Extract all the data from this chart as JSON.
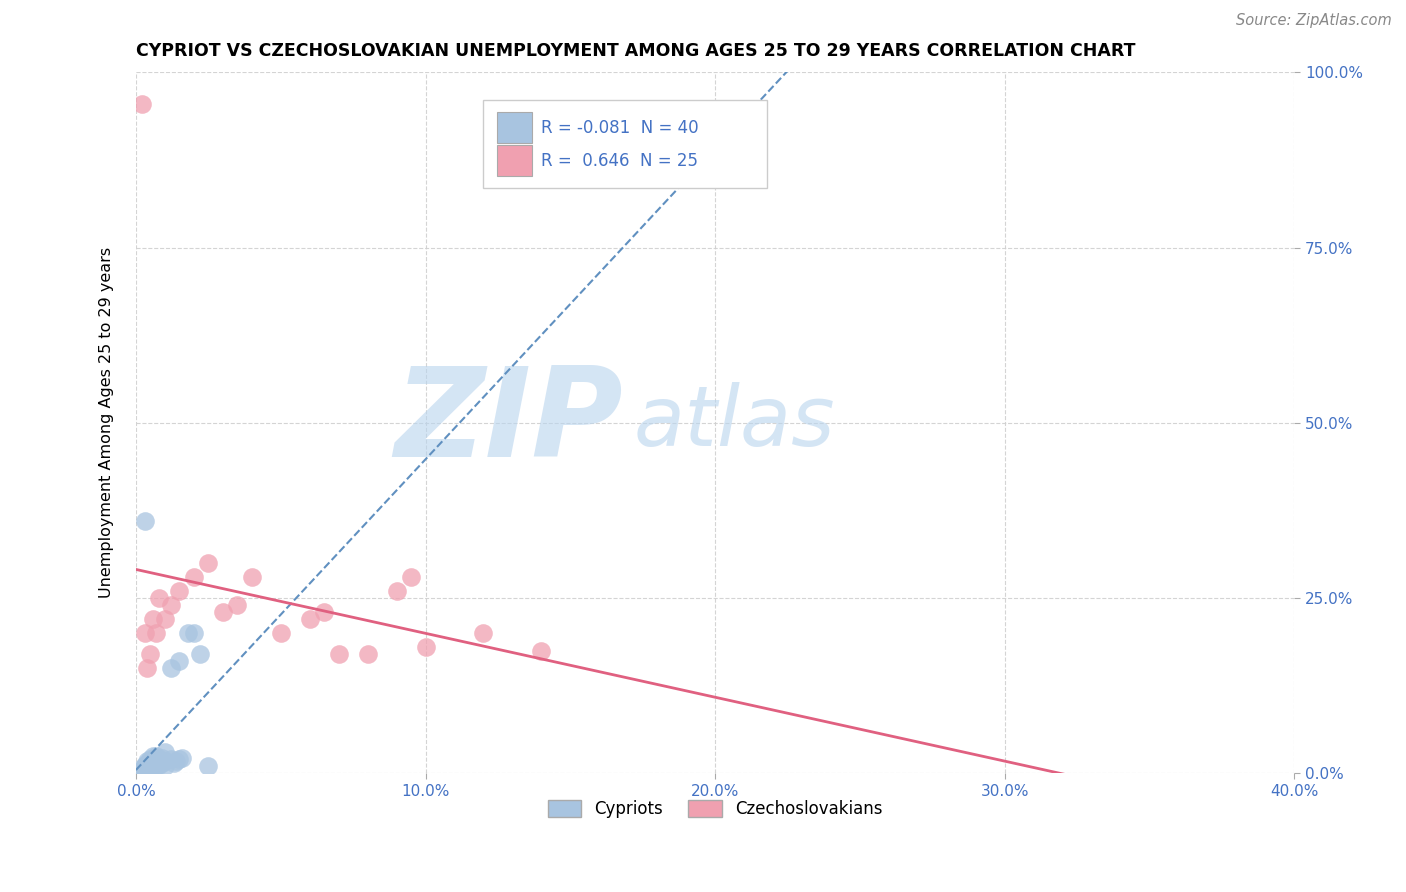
{
  "title": "CYPRIOT VS CZECHOSLOVAKIAN UNEMPLOYMENT AMONG AGES 25 TO 29 YEARS CORRELATION CHART",
  "source": "Source: ZipAtlas.com",
  "ylabel": "Unemployment Among Ages 25 to 29 years",
  "xlim": [
    0.0,
    0.4
  ],
  "ylim": [
    0.0,
    1.0
  ],
  "xtick_labels": [
    "0.0%",
    "10.0%",
    "20.0%",
    "30.0%",
    "40.0%"
  ],
  "xtick_vals": [
    0.0,
    0.1,
    0.2,
    0.3,
    0.4
  ],
  "ytick_labels": [
    "0.0%",
    "25.0%",
    "50.0%",
    "75.0%",
    "100.0%"
  ],
  "ytick_vals": [
    0.0,
    0.25,
    0.5,
    0.75,
    1.0
  ],
  "cypriot_color": "#a8c4e0",
  "czechoslovakian_color": "#f0a0b0",
  "cypriot_R": -0.081,
  "cypriot_N": 40,
  "czechoslovakian_R": 0.646,
  "czechoslovakian_N": 25,
  "watermark_zip": "ZIP",
  "watermark_atlas": "atlas",
  "watermark_color_zip": "#b8d4ee",
  "watermark_color_atlas": "#b8d4ee",
  "cypriot_trend_color": "#6090c0",
  "czechoslovakian_trend_color": "#e06080",
  "grid_color": "#d0d0d0",
  "background_color": "#ffffff",
  "tick_color": "#4472c4",
  "cypriot_scatter_x": [
    0.002,
    0.002,
    0.003,
    0.003,
    0.003,
    0.004,
    0.004,
    0.004,
    0.004,
    0.004,
    0.005,
    0.005,
    0.005,
    0.005,
    0.006,
    0.006,
    0.006,
    0.007,
    0.007,
    0.007,
    0.008,
    0.008,
    0.009,
    0.009,
    0.01,
    0.01,
    0.01,
    0.012,
    0.012,
    0.013,
    0.014,
    0.015,
    0.015,
    0.016,
    0.018,
    0.02,
    0.022,
    0.025,
    0.003,
    0.004
  ],
  "cypriot_scatter_y": [
    0.005,
    0.008,
    0.006,
    0.01,
    0.012,
    0.005,
    0.008,
    0.01,
    0.015,
    0.018,
    0.006,
    0.009,
    0.012,
    0.02,
    0.01,
    0.015,
    0.025,
    0.01,
    0.018,
    0.025,
    0.012,
    0.02,
    0.015,
    0.022,
    0.01,
    0.018,
    0.03,
    0.02,
    0.15,
    0.015,
    0.018,
    0.02,
    0.16,
    0.022,
    0.2,
    0.2,
    0.17,
    0.01,
    0.36,
    0.005
  ],
  "czechoslovakian_scatter_x": [
    0.002,
    0.003,
    0.004,
    0.005,
    0.006,
    0.007,
    0.008,
    0.01,
    0.012,
    0.015,
    0.02,
    0.025,
    0.03,
    0.035,
    0.04,
    0.05,
    0.06,
    0.065,
    0.07,
    0.08,
    0.09,
    0.095,
    0.1,
    0.12,
    0.14
  ],
  "czechoslovakian_scatter_y": [
    0.955,
    0.2,
    0.15,
    0.17,
    0.22,
    0.2,
    0.25,
    0.22,
    0.24,
    0.26,
    0.28,
    0.3,
    0.23,
    0.24,
    0.28,
    0.2,
    0.22,
    0.23,
    0.17,
    0.17,
    0.26,
    0.28,
    0.18,
    0.2,
    0.175
  ]
}
